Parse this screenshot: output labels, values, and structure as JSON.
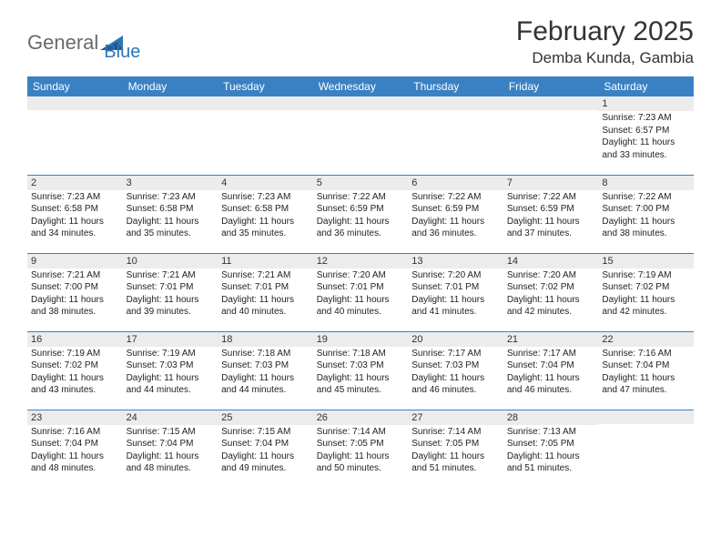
{
  "logo": {
    "part1": "General",
    "part2": "Blue"
  },
  "title": "February 2025",
  "location": "Demba Kunda, Gambia",
  "colors": {
    "header_bg": "#3a81c3",
    "header_text": "#ffffff",
    "cell_border": "#3a81c3",
    "daynum_bg": "#ececec",
    "logo_gray": "#6a6a6a",
    "logo_blue": "#2e75b6",
    "page_bg": "#ffffff",
    "text": "#222222"
  },
  "weekdays": [
    "Sunday",
    "Monday",
    "Tuesday",
    "Wednesday",
    "Thursday",
    "Friday",
    "Saturday"
  ],
  "weeks": [
    [
      {
        "n": "",
        "t": ""
      },
      {
        "n": "",
        "t": ""
      },
      {
        "n": "",
        "t": ""
      },
      {
        "n": "",
        "t": ""
      },
      {
        "n": "",
        "t": ""
      },
      {
        "n": "",
        "t": ""
      },
      {
        "n": "1",
        "t": "Sunrise: 7:23 AM\nSunset: 6:57 PM\nDaylight: 11 hours and 33 minutes."
      }
    ],
    [
      {
        "n": "2",
        "t": "Sunrise: 7:23 AM\nSunset: 6:58 PM\nDaylight: 11 hours and 34 minutes."
      },
      {
        "n": "3",
        "t": "Sunrise: 7:23 AM\nSunset: 6:58 PM\nDaylight: 11 hours and 35 minutes."
      },
      {
        "n": "4",
        "t": "Sunrise: 7:23 AM\nSunset: 6:58 PM\nDaylight: 11 hours and 35 minutes."
      },
      {
        "n": "5",
        "t": "Sunrise: 7:22 AM\nSunset: 6:59 PM\nDaylight: 11 hours and 36 minutes."
      },
      {
        "n": "6",
        "t": "Sunrise: 7:22 AM\nSunset: 6:59 PM\nDaylight: 11 hours and 36 minutes."
      },
      {
        "n": "7",
        "t": "Sunrise: 7:22 AM\nSunset: 6:59 PM\nDaylight: 11 hours and 37 minutes."
      },
      {
        "n": "8",
        "t": "Sunrise: 7:22 AM\nSunset: 7:00 PM\nDaylight: 11 hours and 38 minutes."
      }
    ],
    [
      {
        "n": "9",
        "t": "Sunrise: 7:21 AM\nSunset: 7:00 PM\nDaylight: 11 hours and 38 minutes."
      },
      {
        "n": "10",
        "t": "Sunrise: 7:21 AM\nSunset: 7:01 PM\nDaylight: 11 hours and 39 minutes."
      },
      {
        "n": "11",
        "t": "Sunrise: 7:21 AM\nSunset: 7:01 PM\nDaylight: 11 hours and 40 minutes."
      },
      {
        "n": "12",
        "t": "Sunrise: 7:20 AM\nSunset: 7:01 PM\nDaylight: 11 hours and 40 minutes."
      },
      {
        "n": "13",
        "t": "Sunrise: 7:20 AM\nSunset: 7:01 PM\nDaylight: 11 hours and 41 minutes."
      },
      {
        "n": "14",
        "t": "Sunrise: 7:20 AM\nSunset: 7:02 PM\nDaylight: 11 hours and 42 minutes."
      },
      {
        "n": "15",
        "t": "Sunrise: 7:19 AM\nSunset: 7:02 PM\nDaylight: 11 hours and 42 minutes."
      }
    ],
    [
      {
        "n": "16",
        "t": "Sunrise: 7:19 AM\nSunset: 7:02 PM\nDaylight: 11 hours and 43 minutes."
      },
      {
        "n": "17",
        "t": "Sunrise: 7:19 AM\nSunset: 7:03 PM\nDaylight: 11 hours and 44 minutes."
      },
      {
        "n": "18",
        "t": "Sunrise: 7:18 AM\nSunset: 7:03 PM\nDaylight: 11 hours and 44 minutes."
      },
      {
        "n": "19",
        "t": "Sunrise: 7:18 AM\nSunset: 7:03 PM\nDaylight: 11 hours and 45 minutes."
      },
      {
        "n": "20",
        "t": "Sunrise: 7:17 AM\nSunset: 7:03 PM\nDaylight: 11 hours and 46 minutes."
      },
      {
        "n": "21",
        "t": "Sunrise: 7:17 AM\nSunset: 7:04 PM\nDaylight: 11 hours and 46 minutes."
      },
      {
        "n": "22",
        "t": "Sunrise: 7:16 AM\nSunset: 7:04 PM\nDaylight: 11 hours and 47 minutes."
      }
    ],
    [
      {
        "n": "23",
        "t": "Sunrise: 7:16 AM\nSunset: 7:04 PM\nDaylight: 11 hours and 48 minutes."
      },
      {
        "n": "24",
        "t": "Sunrise: 7:15 AM\nSunset: 7:04 PM\nDaylight: 11 hours and 48 minutes."
      },
      {
        "n": "25",
        "t": "Sunrise: 7:15 AM\nSunset: 7:04 PM\nDaylight: 11 hours and 49 minutes."
      },
      {
        "n": "26",
        "t": "Sunrise: 7:14 AM\nSunset: 7:05 PM\nDaylight: 11 hours and 50 minutes."
      },
      {
        "n": "27",
        "t": "Sunrise: 7:14 AM\nSunset: 7:05 PM\nDaylight: 11 hours and 51 minutes."
      },
      {
        "n": "28",
        "t": "Sunrise: 7:13 AM\nSunset: 7:05 PM\nDaylight: 11 hours and 51 minutes."
      },
      {
        "n": "",
        "t": ""
      }
    ]
  ]
}
